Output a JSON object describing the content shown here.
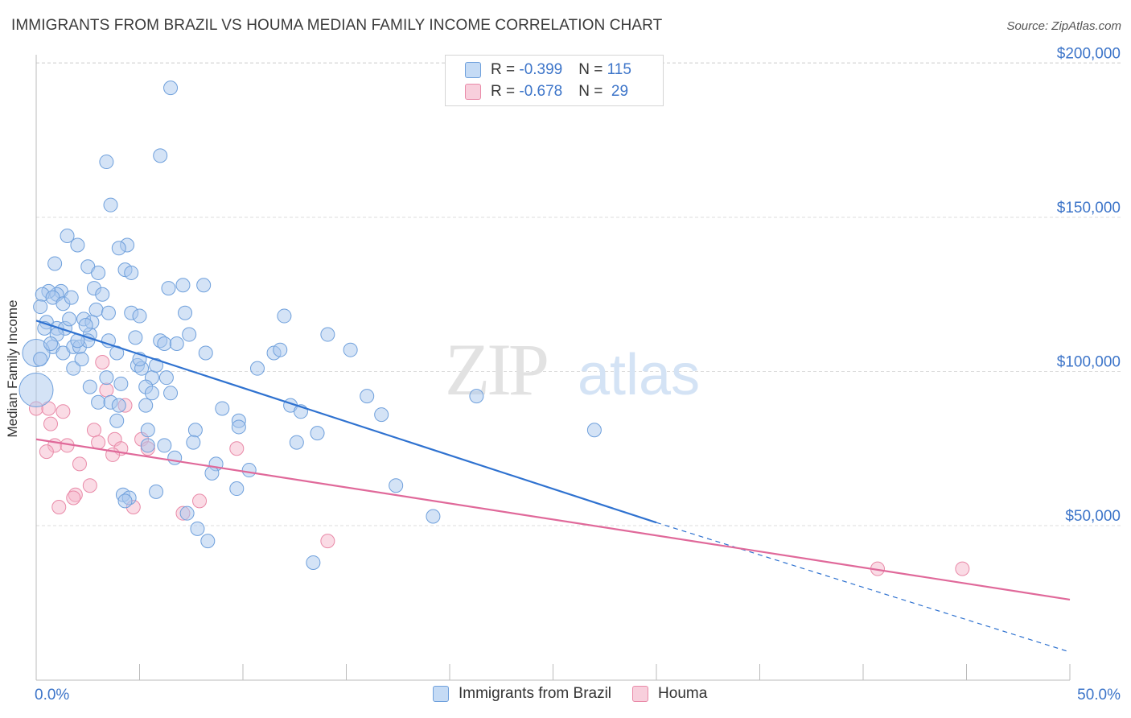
{
  "title": "IMMIGRANTS FROM BRAZIL VS HOUMA MEDIAN FAMILY INCOME CORRELATION CHART",
  "source": "Source: ZipAtlas.com",
  "watermark": {
    "zip": "ZIP",
    "atlas": "atlas"
  },
  "legend": {
    "rows": [
      {
        "r_label": "R = ",
        "r_value": "-0.399",
        "n_label": "N = ",
        "n_value": "115",
        "color": "#a9c8ee"
      },
      {
        "r_label": "R = ",
        "r_value": "-0.678",
        "n_label": "N = ",
        "n_value": " 29",
        "color": "#f5b8cb"
      }
    ]
  },
  "colors": {
    "blue_fill": "#a9c8ee",
    "blue_stroke": "#6fa0dc",
    "blue_line": "#2f72d0",
    "pink_fill": "#f5b8cb",
    "pink_stroke": "#e98aa8",
    "pink_line": "#e0699a",
    "axis_text": "#3d75c9",
    "grid": "#dcdcdc"
  },
  "chart_data": {
    "type": "scatter",
    "title": "IMMIGRANTS FROM BRAZIL VS HOUMA MEDIAN FAMILY INCOME CORRELATION CHART",
    "xlabel": "",
    "ylabel": "Median Family Income",
    "xlim": [
      0,
      50
    ],
    "ylim": [
      5000,
      210000
    ],
    "x_tick_labels": [
      "0.0%",
      "50.0%"
    ],
    "y_ticks": [
      50000,
      100000,
      150000,
      200000
    ],
    "y_tick_labels": [
      "$50,000",
      "$100,000",
      "$150,000",
      "$200,000"
    ],
    "grid": true,
    "legend_position": "top-center",
    "series": [
      {
        "name": "Immigrants from Brazil",
        "color": "#a9c8ee",
        "trend": {
          "x": [
            0,
            30,
            50
          ],
          "y": [
            116500,
            51000,
            9000
          ],
          "dashed_from_x": 30
        },
        "points": [
          [
            6.5,
            192000
          ],
          [
            6.0,
            170000
          ],
          [
            3.4,
            168000
          ],
          [
            3.6,
            154000
          ],
          [
            0.9,
            135000
          ],
          [
            1.5,
            144000
          ],
          [
            2.0,
            141000
          ],
          [
            2.5,
            134000
          ],
          [
            4.4,
            141000
          ],
          [
            4.0,
            140000
          ],
          [
            4.3,
            133000
          ],
          [
            4.6,
            132000
          ],
          [
            1.2,
            126000
          ],
          [
            1.0,
            125000
          ],
          [
            0.6,
            126000
          ],
          [
            0.3,
            125000
          ],
          [
            0.8,
            124000
          ],
          [
            1.3,
            122000
          ],
          [
            1.7,
            124000
          ],
          [
            2.8,
            127000
          ],
          [
            3.2,
            125000
          ],
          [
            3.0,
            132000
          ],
          [
            7.1,
            128000
          ],
          [
            6.4,
            127000
          ],
          [
            8.1,
            128000
          ],
          [
            0.2,
            121000
          ],
          [
            0.5,
            116000
          ],
          [
            1.0,
            114000
          ],
          [
            1.4,
            114000
          ],
          [
            2.3,
            117000
          ],
          [
            2.9,
            120000
          ],
          [
            3.5,
            119000
          ],
          [
            4.6,
            119000
          ],
          [
            5.0,
            118000
          ],
          [
            7.2,
            119000
          ],
          [
            12.0,
            118000
          ],
          [
            0.8,
            108000
          ],
          [
            1.3,
            106000
          ],
          [
            1.8,
            108000
          ],
          [
            2.1,
            108000
          ],
          [
            2.6,
            112000
          ],
          [
            2.5,
            110000
          ],
          [
            3.9,
            106000
          ],
          [
            4.8,
            111000
          ],
          [
            6.0,
            110000
          ],
          [
            6.2,
            109000
          ],
          [
            6.8,
            109000
          ],
          [
            7.4,
            112000
          ],
          [
            8.2,
            106000
          ],
          [
            11.5,
            106000
          ],
          [
            11.8,
            107000
          ],
          [
            14.1,
            112000
          ],
          [
            15.2,
            107000
          ],
          [
            0.0,
            106000
          ],
          [
            0.2,
            104000
          ],
          [
            1.8,
            101000
          ],
          [
            2.2,
            104000
          ],
          [
            3.4,
            98000
          ],
          [
            4.9,
            102000
          ],
          [
            5.1,
            101000
          ],
          [
            5.6,
            98000
          ],
          [
            5.8,
            102000
          ],
          [
            10.7,
            101000
          ],
          [
            0.0,
            94000
          ],
          [
            2.6,
            95000
          ],
          [
            3.0,
            90000
          ],
          [
            3.6,
            90000
          ],
          [
            4.0,
            89000
          ],
          [
            5.3,
            95000
          ],
          [
            5.6,
            93000
          ],
          [
            6.5,
            93000
          ],
          [
            12.3,
            89000
          ],
          [
            12.8,
            87000
          ],
          [
            16.0,
            92000
          ],
          [
            16.7,
            86000
          ],
          [
            21.3,
            92000
          ],
          [
            5.3,
            89000
          ],
          [
            3.9,
            84000
          ],
          [
            5.4,
            81000
          ],
          [
            7.7,
            81000
          ],
          [
            9.0,
            88000
          ],
          [
            9.8,
            84000
          ],
          [
            9.8,
            82000
          ],
          [
            13.6,
            80000
          ],
          [
            7.6,
            77000
          ],
          [
            6.2,
            76000
          ],
          [
            5.4,
            76000
          ],
          [
            12.6,
            77000
          ],
          [
            6.7,
            72000
          ],
          [
            8.7,
            70000
          ],
          [
            10.3,
            68000
          ],
          [
            8.5,
            67000
          ],
          [
            17.4,
            63000
          ],
          [
            9.7,
            62000
          ],
          [
            5.8,
            61000
          ],
          [
            4.2,
            60000
          ],
          [
            4.5,
            59000
          ],
          [
            4.3,
            58000
          ],
          [
            7.3,
            54000
          ],
          [
            7.8,
            49000
          ],
          [
            8.3,
            45000
          ],
          [
            13.4,
            38000
          ],
          [
            19.2,
            53000
          ],
          [
            27.0,
            81000
          ],
          [
            2.0,
            110000
          ],
          [
            0.4,
            114000
          ],
          [
            1.0,
            112000
          ],
          [
            3.5,
            110000
          ],
          [
            2.7,
            116000
          ],
          [
            1.6,
            117000
          ],
          [
            0.7,
            109000
          ],
          [
            2.4,
            115000
          ],
          [
            5.0,
            104000
          ],
          [
            6.3,
            98000
          ],
          [
            4.1,
            96000
          ]
        ]
      },
      {
        "name": "Houma",
        "color": "#f5b8cb",
        "trend": {
          "x": [
            0,
            50
          ],
          "y": [
            78000,
            26000
          ]
        },
        "points": [
          [
            0.0,
            88000
          ],
          [
            0.6,
            88000
          ],
          [
            1.3,
            87000
          ],
          [
            0.7,
            83000
          ],
          [
            0.9,
            76000
          ],
          [
            0.5,
            74000
          ],
          [
            1.5,
            76000
          ],
          [
            2.1,
            70000
          ],
          [
            2.6,
            63000
          ],
          [
            1.9,
            60000
          ],
          [
            1.8,
            59000
          ],
          [
            1.1,
            56000
          ],
          [
            2.8,
            81000
          ],
          [
            3.0,
            77000
          ],
          [
            3.2,
            103000
          ],
          [
            3.4,
            94000
          ],
          [
            3.8,
            78000
          ],
          [
            4.1,
            75000
          ],
          [
            4.3,
            89000
          ],
          [
            5.1,
            78000
          ],
          [
            5.4,
            75000
          ],
          [
            4.7,
            56000
          ],
          [
            7.1,
            54000
          ],
          [
            7.9,
            58000
          ],
          [
            9.7,
            75000
          ],
          [
            14.1,
            45000
          ],
          [
            40.7,
            36000
          ],
          [
            44.8,
            36000
          ],
          [
            3.7,
            73000
          ]
        ]
      }
    ]
  },
  "bottom_legend": [
    {
      "label": "Immigrants from Brazil",
      "color": "#a9c8ee"
    },
    {
      "label": "Houma",
      "color": "#f5b8cb"
    }
  ]
}
